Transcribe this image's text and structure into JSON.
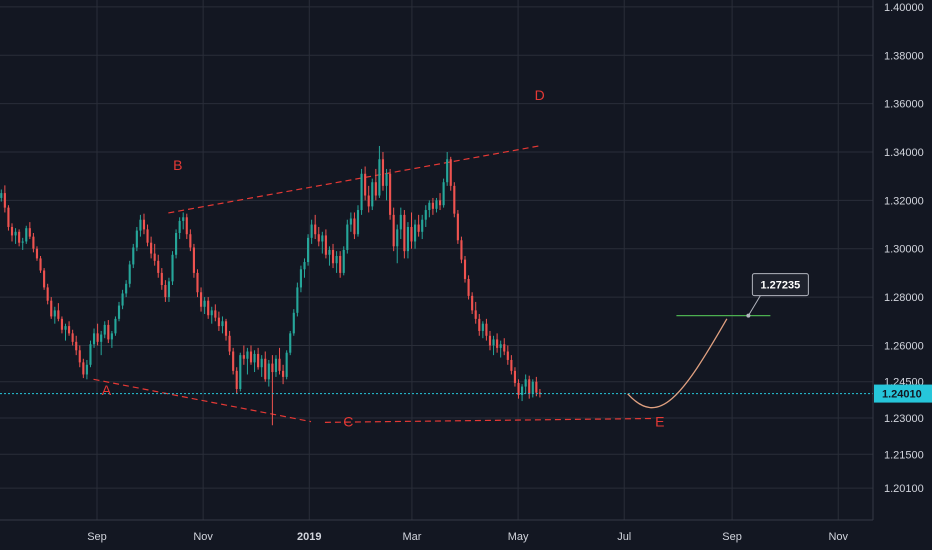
{
  "chart_data": {
    "type": "candlestick",
    "instrument_note": "",
    "colors": {
      "background": "#131722",
      "grid": "#2a2e39",
      "up": "#26a69a",
      "down": "#ef5350",
      "pattern_lines": "#e53935",
      "projection_curve": "#e0a080",
      "target_line": "#4caf50",
      "current_price_line": "#26c6da",
      "current_price_badge": "#26c6da",
      "target_badge": "#1e222d"
    },
    "y_axis": {
      "min": 1.19,
      "max": 1.405,
      "ticks": [
        "1.40000",
        "1.38000",
        "1.36000",
        "1.34000",
        "1.32000",
        "1.30000",
        "1.28000",
        "1.26000",
        "1.24500",
        "1.23000",
        "1.21500",
        "1.20100"
      ],
      "tick_values": [
        1.4,
        1.38,
        1.36,
        1.34,
        1.32,
        1.3,
        1.28,
        1.26,
        1.245,
        1.23,
        1.215,
        1.201
      ]
    },
    "x_axis": {
      "ticks": [
        "Sep",
        "Nov",
        "2019",
        "Mar",
        "May",
        "Jul",
        "Sep",
        "Nov"
      ],
      "tick_dates": [
        "2018-09-01",
        "2018-11-01",
        "2019-01-01",
        "2019-03-01",
        "2019-05-01",
        "2019-07-01",
        "2019-09-01",
        "2019-11-01"
      ],
      "range": [
        "2018-07-08",
        "2019-11-30"
      ]
    },
    "current_price": {
      "label": "1.24010",
      "value": 1.2401
    },
    "target": {
      "label": "1.27235",
      "value": 1.27235,
      "line_from": "2019-07-31",
      "line_to": "2019-09-23"
    },
    "pattern_points": [
      {
        "label": "A",
        "date": "2018-09-03",
        "value": 1.246,
        "label_value": 1.2395
      },
      {
        "label": "B",
        "date": "2018-10-14",
        "value": 1.3145,
        "label_value": 1.3325
      },
      {
        "label": "C",
        "date": "2019-01-20",
        "value": 1.229,
        "label_value": 1.2265
      },
      {
        "label": "D",
        "date": "2019-05-10",
        "value": 1.3425,
        "label_value": 1.3615
      },
      {
        "label": "E",
        "date": "2019-07-18",
        "value": 1.23,
        "label_value": 1.2265
      }
    ],
    "pattern_lines": [
      {
        "from": {
          "date": "2018-08-30",
          "value": 1.246
        },
        "to": {
          "date": "2019-01-02",
          "value": 1.2285
        }
      },
      {
        "from": {
          "date": "2019-01-10",
          "value": 1.2282
        },
        "to": {
          "date": "2019-07-17",
          "value": 1.2298
        }
      },
      {
        "from": {
          "date": "2018-10-12",
          "value": 1.3148
        },
        "to": {
          "date": "2019-05-13",
          "value": 1.3425
        }
      }
    ],
    "projection_curve": [
      {
        "date": "2019-07-03",
        "value": 1.24
      },
      {
        "date": "2019-07-21",
        "value": 1.234
      },
      {
        "date": "2019-08-09",
        "value": 1.243
      },
      {
        "date": "2019-08-29",
        "value": 1.271
      }
    ],
    "candles": {
      "start_date": "2018-07-08",
      "step_days": 2.05,
      "series": [
        [
          1.321,
          1.3245,
          1.3195,
          1.323
        ],
        [
          1.323,
          1.3262,
          1.315,
          1.317
        ],
        [
          1.317,
          1.318,
          1.3075,
          1.309
        ],
        [
          1.309,
          1.3105,
          1.303,
          1.3055
        ],
        [
          1.3055,
          1.3085,
          1.302,
          1.307
        ],
        [
          1.307,
          1.308,
          1.301,
          1.3025
        ],
        [
          1.3025,
          1.3045,
          1.2995,
          1.303
        ],
        [
          1.303,
          1.3095,
          1.302,
          1.3085
        ],
        [
          1.3085,
          1.311,
          1.304,
          1.305
        ],
        [
          1.305,
          1.3065,
          1.2985,
          1.3
        ],
        [
          1.3,
          1.301,
          1.295,
          1.296
        ],
        [
          1.296,
          1.297,
          1.29,
          1.291
        ],
        [
          1.291,
          1.292,
          1.283,
          1.284
        ],
        [
          1.284,
          1.2855,
          1.277,
          1.2785
        ],
        [
          1.2785,
          1.28,
          1.271,
          1.272
        ],
        [
          1.272,
          1.276,
          1.269,
          1.2745
        ],
        [
          1.2745,
          1.2775,
          1.27,
          1.271
        ],
        [
          1.271,
          1.272,
          1.265,
          1.2665
        ],
        [
          1.2665,
          1.269,
          1.262,
          1.268
        ],
        [
          1.268,
          1.27,
          1.264,
          1.265
        ],
        [
          1.265,
          1.2665,
          1.26,
          1.2615
        ],
        [
          1.2615,
          1.264,
          1.256,
          1.258
        ],
        [
          1.258,
          1.26,
          1.251,
          1.253
        ],
        [
          1.253,
          1.2545,
          1.2465,
          1.248
        ],
        [
          1.248,
          1.254,
          1.246,
          1.252
        ],
        [
          1.252,
          1.262,
          1.251,
          1.2605
        ],
        [
          1.2605,
          1.267,
          1.259,
          1.265
        ],
        [
          1.265,
          1.269,
          1.26,
          1.2615
        ],
        [
          1.2615,
          1.266,
          1.256,
          1.2645
        ],
        [
          1.2645,
          1.27,
          1.263,
          1.2685
        ],
        [
          1.2685,
          1.2705,
          1.261,
          1.2625
        ],
        [
          1.2625,
          1.266,
          1.259,
          1.265
        ],
        [
          1.265,
          1.272,
          1.264,
          1.271
        ],
        [
          1.271,
          1.278,
          1.27,
          1.2765
        ],
        [
          1.2765,
          1.283,
          1.275,
          1.2815
        ],
        [
          1.2815,
          1.287,
          1.28,
          1.2855
        ],
        [
          1.2855,
          1.295,
          1.284,
          1.2935
        ],
        [
          1.2935,
          1.302,
          1.292,
          1.3005
        ],
        [
          1.3005,
          1.309,
          1.299,
          1.3075
        ],
        [
          1.3075,
          1.314,
          1.305,
          1.312
        ],
        [
          1.312,
          1.3145,
          1.306,
          1.308
        ],
        [
          1.308,
          1.31,
          1.301,
          1.3025
        ],
        [
          1.3025,
          1.305,
          1.296,
          1.298
        ],
        [
          1.298,
          1.302,
          1.293,
          1.295
        ],
        [
          1.295,
          1.2975,
          1.288,
          1.29
        ],
        [
          1.29,
          1.292,
          1.283,
          1.285
        ],
        [
          1.285,
          1.287,
          1.278,
          1.28
        ],
        [
          1.28,
          1.288,
          1.278,
          1.2865
        ],
        [
          1.2865,
          1.299,
          1.285,
          1.2975
        ],
        [
          1.2975,
          1.308,
          1.296,
          1.3065
        ],
        [
          1.3065,
          1.313,
          1.304,
          1.3115
        ],
        [
          1.3115,
          1.315,
          1.308,
          1.313
        ],
        [
          1.313,
          1.3145,
          1.304,
          1.306
        ],
        [
          1.306,
          1.308,
          1.299,
          1.3005
        ],
        [
          1.3005,
          1.302,
          1.288,
          1.29
        ],
        [
          1.29,
          1.2915,
          1.28,
          1.282
        ],
        [
          1.282,
          1.284,
          1.274,
          1.276
        ],
        [
          1.276,
          1.28,
          1.273,
          1.2785
        ],
        [
          1.2785,
          1.28,
          1.271,
          1.2725
        ],
        [
          1.2725,
          1.276,
          1.269,
          1.2745
        ],
        [
          1.2745,
          1.277,
          1.27,
          1.2715
        ],
        [
          1.2715,
          1.274,
          1.266,
          1.268
        ],
        [
          1.268,
          1.272,
          1.265,
          1.27
        ],
        [
          1.27,
          1.271,
          1.262,
          1.264
        ],
        [
          1.264,
          1.266,
          1.256,
          1.2575
        ],
        [
          1.2575,
          1.259,
          1.248,
          1.2495
        ],
        [
          1.2495,
          1.251,
          1.24,
          1.242
        ],
        [
          1.242,
          1.257,
          1.241,
          1.256
        ],
        [
          1.256,
          1.26,
          1.252,
          1.2545
        ],
        [
          1.2545,
          1.259,
          1.248,
          1.2575
        ],
        [
          1.2575,
          1.26,
          1.252,
          1.253
        ],
        [
          1.253,
          1.258,
          1.249,
          1.2565
        ],
        [
          1.2565,
          1.259,
          1.25,
          1.251
        ],
        [
          1.251,
          1.256,
          1.247,
          1.2545
        ],
        [
          1.2545,
          1.2575,
          1.245,
          1.246
        ],
        [
          1.246,
          1.254,
          1.243,
          1.2525
        ],
        [
          1.2525,
          1.256,
          1.227,
          1.249
        ],
        [
          1.249,
          1.256,
          1.247,
          1.2545
        ],
        [
          1.2545,
          1.259,
          1.248,
          1.2495
        ],
        [
          1.2495,
          1.252,
          1.244,
          1.247
        ],
        [
          1.247,
          1.258,
          1.246,
          1.257
        ],
        [
          1.257,
          1.266,
          1.256,
          1.265
        ],
        [
          1.265,
          1.275,
          1.264,
          1.2735
        ],
        [
          1.2735,
          1.286,
          1.272,
          1.284
        ],
        [
          1.284,
          1.293,
          1.282,
          1.2915
        ],
        [
          1.2915,
          1.296,
          1.288,
          1.2945
        ],
        [
          1.2945,
          1.306,
          1.293,
          1.3045
        ],
        [
          1.3045,
          1.312,
          1.302,
          1.31
        ],
        [
          1.31,
          1.314,
          1.304,
          1.306
        ],
        [
          1.306,
          1.309,
          1.301,
          1.303
        ],
        [
          1.303,
          1.307,
          1.298,
          1.3055
        ],
        [
          1.3055,
          1.308,
          1.296,
          1.2975
        ],
        [
          1.2975,
          1.301,
          1.293,
          1.2995
        ],
        [
          1.2995,
          1.302,
          1.292,
          1.294
        ],
        [
          1.294,
          1.299,
          1.29,
          1.297
        ],
        [
          1.297,
          1.299,
          1.288,
          1.29
        ],
        [
          1.29,
          1.301,
          1.289,
          1.2995
        ],
        [
          1.2995,
          1.312,
          1.298,
          1.31
        ],
        [
          1.31,
          1.315,
          1.307,
          1.3125
        ],
        [
          1.3125,
          1.315,
          1.304,
          1.306
        ],
        [
          1.306,
          1.318,
          1.305,
          1.316
        ],
        [
          1.316,
          1.333,
          1.314,
          1.331
        ],
        [
          1.331,
          1.334,
          1.32,
          1.322
        ],
        [
          1.322,
          1.326,
          1.315,
          1.3175
        ],
        [
          1.3175,
          1.329,
          1.316,
          1.3275
        ],
        [
          1.3275,
          1.333,
          1.32,
          1.322
        ],
        [
          1.322,
          1.3425,
          1.321,
          1.337
        ],
        [
          1.337,
          1.34,
          1.324,
          1.326
        ],
        [
          1.326,
          1.333,
          1.32,
          1.331
        ],
        [
          1.331,
          1.333,
          1.312,
          1.314
        ],
        [
          1.314,
          1.317,
          1.299,
          1.301
        ],
        [
          1.301,
          1.31,
          1.294,
          1.308
        ],
        [
          1.308,
          1.317,
          1.304,
          1.314
        ],
        [
          1.314,
          1.316,
          1.296,
          1.299
        ],
        [
          1.299,
          1.311,
          1.296,
          1.309
        ],
        [
          1.309,
          1.315,
          1.3,
          1.303
        ],
        [
          1.303,
          1.312,
          1.3,
          1.31
        ],
        [
          1.31,
          1.314,
          1.305,
          1.307
        ],
        [
          1.307,
          1.314,
          1.304,
          1.312
        ],
        [
          1.312,
          1.318,
          1.309,
          1.316
        ],
        [
          1.316,
          1.32,
          1.313,
          1.319
        ],
        [
          1.319,
          1.321,
          1.314,
          1.3165
        ],
        [
          1.3165,
          1.321,
          1.315,
          1.32
        ],
        [
          1.32,
          1.323,
          1.316,
          1.318
        ],
        [
          1.318,
          1.329,
          1.317,
          1.3275
        ],
        [
          1.3275,
          1.34,
          1.326,
          1.337
        ],
        [
          1.337,
          1.338,
          1.324,
          1.326
        ],
        [
          1.326,
          1.3275,
          1.313,
          1.3145
        ],
        [
          1.3145,
          1.316,
          1.302,
          1.3035
        ],
        [
          1.3035,
          1.305,
          1.294,
          1.2955
        ],
        [
          1.2955,
          1.297,
          1.286,
          1.2875
        ],
        [
          1.2875,
          1.289,
          1.279,
          1.2805
        ],
        [
          1.2805,
          1.282,
          1.273,
          1.2745
        ],
        [
          1.2745,
          1.278,
          1.269,
          1.271
        ],
        [
          1.271,
          1.273,
          1.264,
          1.266
        ],
        [
          1.266,
          1.27,
          1.263,
          1.269
        ],
        [
          1.269,
          1.271,
          1.262,
          1.264
        ],
        [
          1.264,
          1.266,
          1.258,
          1.26
        ],
        [
          1.26,
          1.264,
          1.256,
          1.2625
        ],
        [
          1.2625,
          1.265,
          1.257,
          1.259
        ],
        [
          1.259,
          1.262,
          1.255,
          1.2605
        ],
        [
          1.2605,
          1.263,
          1.256,
          1.2575
        ],
        [
          1.2575,
          1.26,
          1.252,
          1.254
        ],
        [
          1.254,
          1.256,
          1.248,
          1.2495
        ],
        [
          1.2495,
          1.251,
          1.243,
          1.2445
        ],
        [
          1.2445,
          1.246,
          1.238,
          1.2395
        ],
        [
          1.2395,
          1.244,
          1.237,
          1.243
        ],
        [
          1.243,
          1.248,
          1.24,
          1.246
        ],
        [
          1.246,
          1.2475,
          1.238,
          1.24
        ],
        [
          1.24,
          1.246,
          1.2385,
          1.245
        ],
        [
          1.245,
          1.247,
          1.239,
          1.2405
        ],
        [
          1.2405,
          1.242,
          1.2385,
          1.2401
        ]
      ]
    }
  }
}
